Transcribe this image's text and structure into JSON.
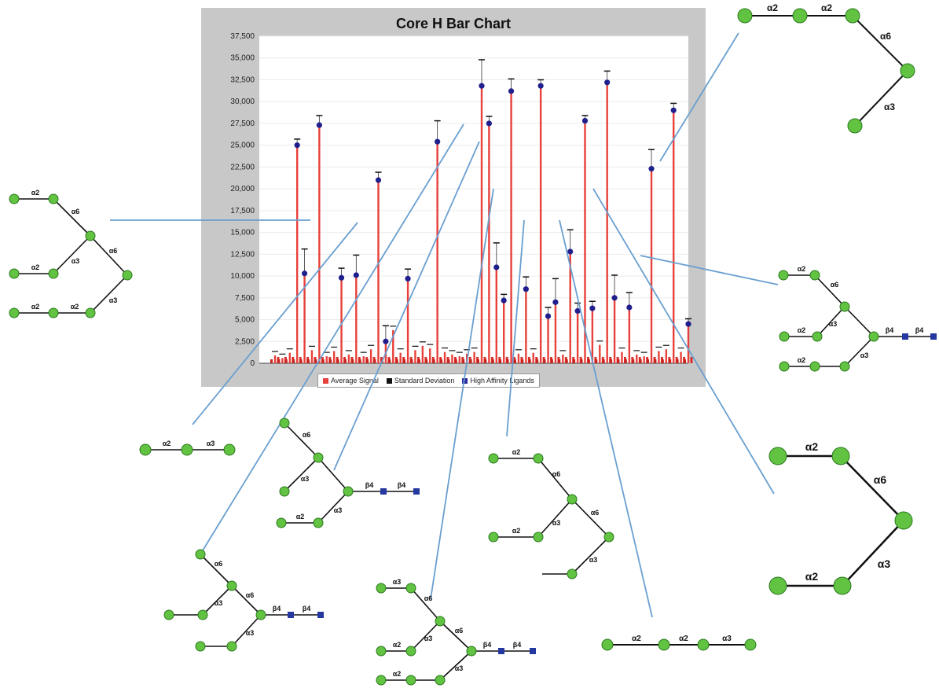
{
  "chart_data": {
    "type": "bar",
    "title": "Core H Bar Chart",
    "xlabel": "",
    "ylabel": "",
    "ylim": [
      0,
      37500
    ],
    "y_tick_labels": [
      "0",
      "2,500",
      "5,000",
      "7,500",
      "10,000",
      "12,500",
      "15,000",
      "17,500",
      "20,000",
      "22,500",
      "25,000",
      "27,500",
      "30,000",
      "32,500",
      "35,000",
      "37,500"
    ],
    "grid": true,
    "legend_placement": "bottom",
    "legend": [
      {
        "label": "Average Signal",
        "color": "#e8403a"
      },
      {
        "label": "Standard Deviation",
        "color": "#111111"
      },
      {
        "label": "High Affinity Ligands",
        "color": "#2a2a9c"
      }
    ],
    "bars": [
      {
        "x": 1,
        "value": 900
      },
      {
        "x": 2,
        "value": 600
      },
      {
        "x": 3,
        "value": 1200
      },
      {
        "x": 4,
        "value": 25000,
        "sd": 700
      },
      {
        "x": 5,
        "value": 10300,
        "sd": 2800
      },
      {
        "x": 6,
        "value": 1500
      },
      {
        "x": 7,
        "value": 27300,
        "sd": 1100
      },
      {
        "x": 8,
        "value": 800
      },
      {
        "x": 9,
        "value": 1400
      },
      {
        "x": 10,
        "value": 9800,
        "sd": 1100
      },
      {
        "x": 11,
        "value": 1000
      },
      {
        "x": 12,
        "value": 10100,
        "sd": 2300
      },
      {
        "x": 13,
        "value": 800
      },
      {
        "x": 14,
        "value": 1600
      },
      {
        "x": 15,
        "value": 21000,
        "sd": 900
      },
      {
        "x": 16,
        "value": 2500,
        "sd": 1800
      },
      {
        "x": 17,
        "value": 3800
      },
      {
        "x": 18,
        "value": 1200
      },
      {
        "x": 19,
        "value": 9700,
        "sd": 1100
      },
      {
        "x": 20,
        "value": 1500
      },
      {
        "x": 21,
        "value": 2000
      },
      {
        "x": 22,
        "value": 1700
      },
      {
        "x": 23,
        "value": 25400,
        "sd": 2400
      },
      {
        "x": 24,
        "value": 1300
      },
      {
        "x": 25,
        "value": 1000
      },
      {
        "x": 26,
        "value": 800
      },
      {
        "x": 27,
        "value": 1100
      },
      {
        "x": 28,
        "value": 1300
      },
      {
        "x": 29,
        "value": 31800,
        "sd": 3000
      },
      {
        "x": 30,
        "value": 27500,
        "sd": 800
      },
      {
        "x": 31,
        "value": 11000,
        "sd": 2800
      },
      {
        "x": 32,
        "value": 7200,
        "sd": 700
      },
      {
        "x": 33,
        "value": 31200,
        "sd": 1400
      },
      {
        "x": 34,
        "value": 1100
      },
      {
        "x": 35,
        "value": 8500,
        "sd": 1400
      },
      {
        "x": 36,
        "value": 1200
      },
      {
        "x": 37,
        "value": 31800,
        "sd": 700
      },
      {
        "x": 38,
        "value": 5400,
        "sd": 1000
      },
      {
        "x": 39,
        "value": 7000,
        "sd": 2700
      },
      {
        "x": 40,
        "value": 1000
      },
      {
        "x": 41,
        "value": 12800,
        "sd": 2500
      },
      {
        "x": 42,
        "value": 6000,
        "sd": 900
      },
      {
        "x": 43,
        "value": 27800,
        "sd": 600
      },
      {
        "x": 44,
        "value": 6300,
        "sd": 800
      },
      {
        "x": 45,
        "value": 2100
      },
      {
        "x": 46,
        "value": 32200,
        "sd": 1300
      },
      {
        "x": 47,
        "value": 7500,
        "sd": 2600
      },
      {
        "x": 48,
        "value": 1300
      },
      {
        "x": 49,
        "value": 6400,
        "sd": 1700
      },
      {
        "x": 50,
        "value": 1000
      },
      {
        "x": 51,
        "value": 800
      },
      {
        "x": 52,
        "value": 22300,
        "sd": 2200
      },
      {
        "x": 53,
        "value": 1400
      },
      {
        "x": 54,
        "value": 1600
      },
      {
        "x": 55,
        "value": 29000,
        "sd": 800
      },
      {
        "x": 56,
        "value": 1300
      },
      {
        "x": 57,
        "value": 4500,
        "sd": 600
      }
    ]
  },
  "glycan_structures": [
    {
      "labels": [
        "α2",
        "α2",
        "α6",
        "α3"
      ]
    },
    {
      "labels": [
        "α2",
        "α6",
        "α6",
        "α2",
        "α3",
        "α2",
        "α2",
        "α3"
      ]
    },
    {
      "labels": [
        "α2",
        "α6",
        "α3",
        "β4",
        "β4",
        "α2",
        "α3",
        "α2"
      ]
    },
    {
      "labels": [
        "α2",
        "α3"
      ]
    },
    {
      "labels": [
        "α6",
        "α3",
        "β4",
        "β4",
        "α2",
        "α3"
      ]
    },
    {
      "labels": [
        "α2",
        "α6",
        "α3",
        "α6",
        "α2",
        "α3"
      ]
    },
    {
      "labels": [
        "α2",
        "α6",
        "α3",
        "α2",
        "α3"
      ]
    },
    {
      "labels": [
        "α6",
        "α3",
        "α6",
        "β4",
        "β4",
        "α3"
      ]
    },
    {
      "labels": [
        "α3",
        "α6",
        "α3",
        "α6",
        "β4",
        "β4",
        "α2",
        "α2",
        "α3"
      ]
    },
    {
      "labels": [
        "α2",
        "α2",
        "α3"
      ]
    }
  ]
}
